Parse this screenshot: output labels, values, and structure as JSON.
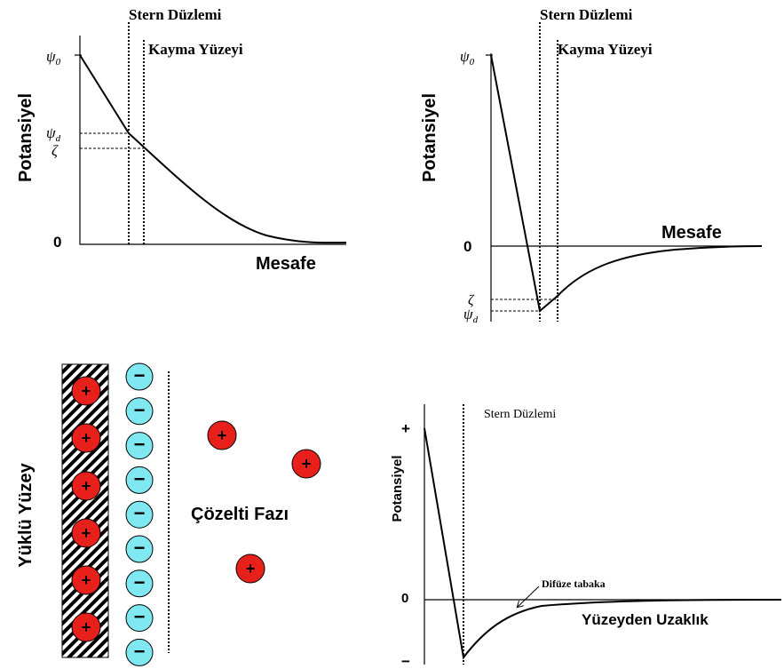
{
  "top_left": {
    "stern_label": "Stern Düzlemi",
    "shear_label": "Kayma Yüzeyi",
    "y_label": "Potansiyel",
    "x_label": "Mesafe",
    "zero": "0",
    "psi0": {
      "base": "ψ",
      "sub": "0"
    },
    "psid": {
      "base": "ψ",
      "sub": "d"
    },
    "zeta": "ζ"
  },
  "top_right": {
    "stern_label": "Stern Düzlemi",
    "shear_label": "Kayma Yüzeyi",
    "y_label": "Potansiyel",
    "x_label": "Mesafe",
    "zero": "0",
    "psi0": {
      "base": "ψ",
      "sub": "0"
    },
    "psid": {
      "base": "ψ",
      "sub": "d"
    },
    "zeta": "ζ"
  },
  "bottom_left": {
    "surface_label": "Yüklü Yüzey",
    "solution_label": "Çözelti Fazı",
    "plus": "+",
    "minus": "−"
  },
  "bottom_right": {
    "stern_label": "Stern Düzlemi",
    "y_label": "Potansiyel",
    "plus": "+",
    "zero": "0",
    "minus": "−",
    "diffuse_label": "Difüze tabaka",
    "x_label": "Yüzeyden Uzaklık"
  }
}
